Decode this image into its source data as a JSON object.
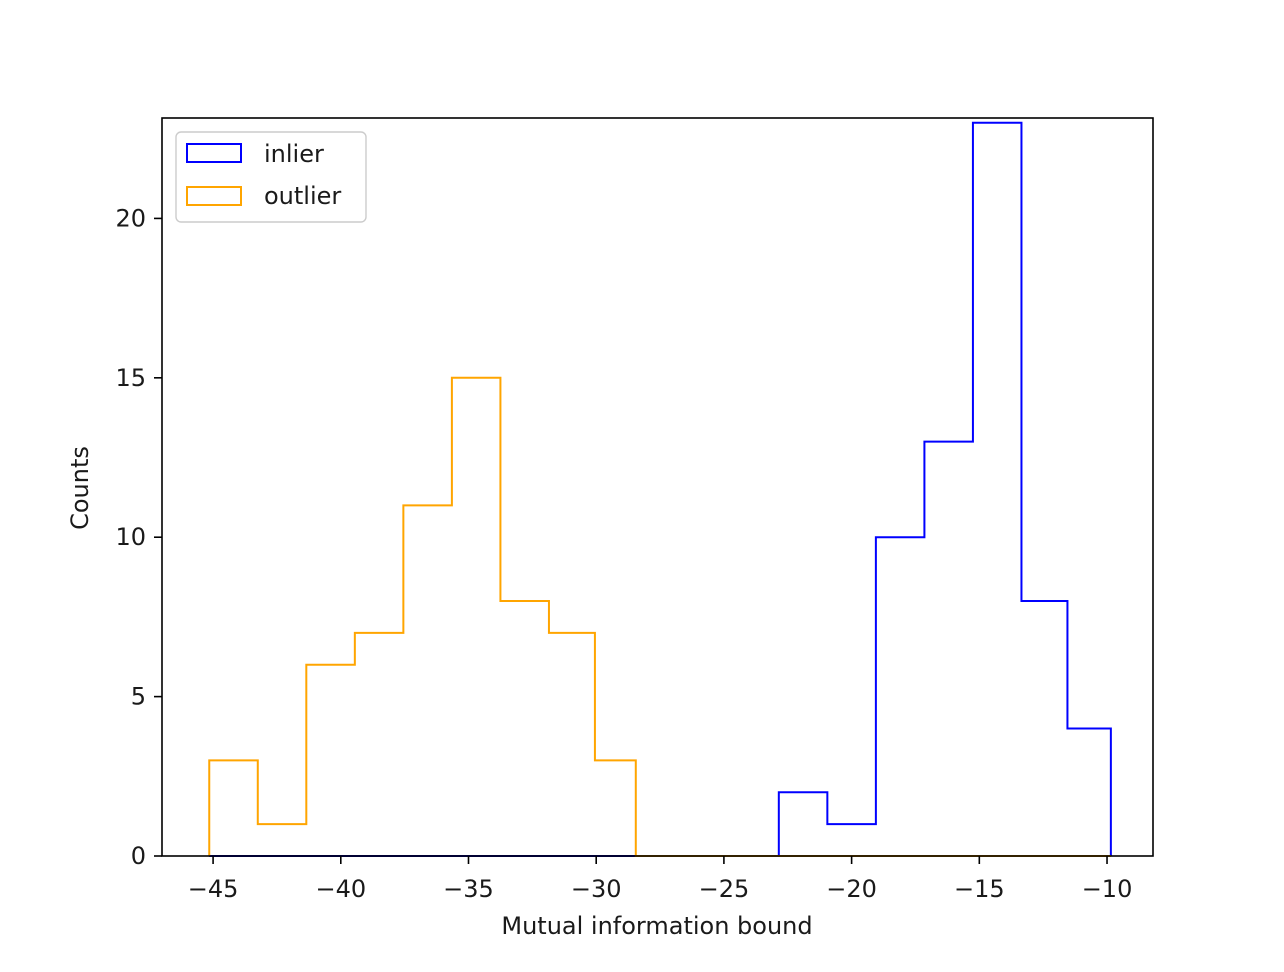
{
  "chart_data": {
    "type": "histogram",
    "title": "",
    "xlabel": "Mutual information bound",
    "ylabel": "Counts",
    "xlim": [
      -47,
      -8.2
    ],
    "ylim": [
      0,
      23.15
    ],
    "xticks": [
      -45,
      -40,
      -35,
      -30,
      -25,
      -20,
      -15,
      -10
    ],
    "xtick_labels": [
      "−45",
      "−40",
      "−35",
      "−30",
      "−25",
      "−20",
      "−15",
      "−10"
    ],
    "yticks": [
      0,
      5,
      10,
      15,
      20
    ],
    "ytick_labels": [
      "0",
      "5",
      "10",
      "15",
      "20"
    ],
    "grid": false,
    "legend_position": "top-left",
    "histtype": "step",
    "series": [
      {
        "name": "inlier",
        "color": "#0000ff",
        "bin_edges": [
          -45.15,
          -43.25,
          -41.35,
          -39.45,
          -37.55,
          -35.65,
          -33.75,
          -31.85,
          -29.95,
          -28.05,
          -26.15,
          -24.25,
          -22.85,
          -20.95,
          -19.05,
          -17.15,
          -15.25,
          -13.35,
          -11.55,
          -9.85
        ],
        "counts": [
          0,
          0,
          0,
          0,
          0,
          0,
          0,
          0,
          0,
          0,
          0,
          0,
          2,
          1,
          10,
          13,
          23,
          8,
          4
        ]
      },
      {
        "name": "outlier",
        "color": "#ffa500",
        "bin_edges": [
          -45.15,
          -43.25,
          -41.35,
          -39.45,
          -37.55,
          -35.65,
          -33.75,
          -31.85,
          -30.05,
          -28.45,
          -26.15,
          -24.25,
          -22.85,
          -20.95,
          -19.05,
          -17.15,
          -15.25,
          -13.35,
          -11.55,
          -9.85
        ],
        "counts": [
          3,
          1,
          6,
          7,
          11,
          15,
          8,
          7,
          3,
          0,
          0,
          0,
          0,
          0,
          0,
          0,
          0,
          0,
          0
        ]
      }
    ]
  }
}
